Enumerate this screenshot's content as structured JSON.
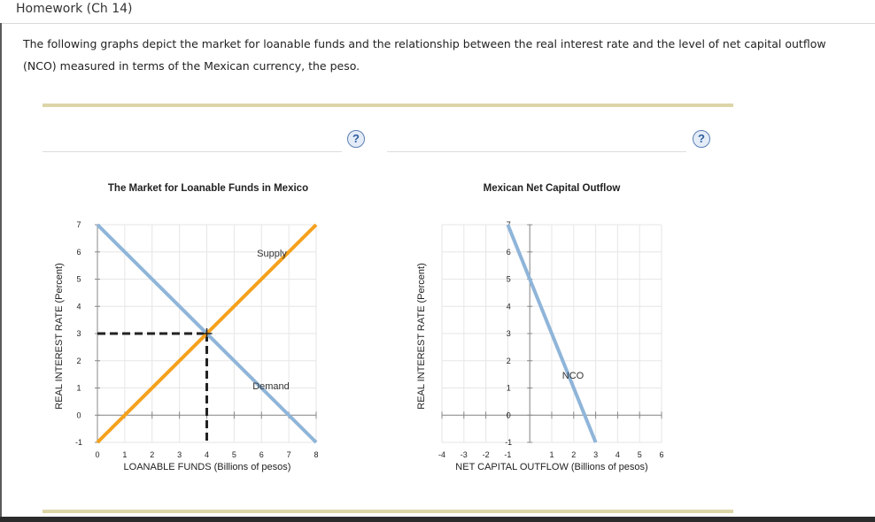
{
  "header": {
    "title": "Homework (Ch 14)"
  },
  "intro": {
    "text": "The following graphs depict the market for loanable funds and the relationship between the real interest rate and the level of net capital outflow (NCO) measured in terms of the Mexican currency, the peso."
  },
  "help": {
    "symbol": "?"
  },
  "colors": {
    "supply": "#f5a11d",
    "demand": "#8fb5d9",
    "nco": "#8fb5d9",
    "dashed": "#222222",
    "grid": "#e6e6e6"
  },
  "chart_data": [
    {
      "type": "line",
      "title": "The Market for Loanable Funds in Mexico",
      "xlabel": "LOANABLE FUNDS (Billions of pesos)",
      "ylabel": "REAL INTEREST RATE (Percent)",
      "xlim": [
        0,
        8
      ],
      "ylim": [
        -1,
        7
      ],
      "xticks": [
        0,
        1,
        2,
        3,
        4,
        5,
        6,
        7,
        8
      ],
      "yticks": [
        -1,
        0,
        1,
        2,
        3,
        4,
        5,
        6,
        7
      ],
      "grid": true,
      "series": [
        {
          "name": "Supply",
          "x": [
            0,
            8
          ],
          "y": [
            -1,
            7
          ]
        },
        {
          "name": "Demand",
          "x": [
            0,
            8
          ],
          "y": [
            7,
            -1
          ]
        }
      ],
      "equilibrium": {
        "x": 4,
        "y": 3
      }
    },
    {
      "type": "line",
      "title": "Mexican Net Capital Outflow",
      "xlabel": "NET CAPITAL OUTFLOW (Billions of pesos)",
      "ylabel": "REAL INTEREST RATE (Percent)",
      "xlim": [
        -4,
        6
      ],
      "ylim": [
        -1,
        7
      ],
      "xticks": [
        -4,
        -3,
        -2,
        -1,
        1,
        2,
        3,
        4,
        5,
        6
      ],
      "yticks": [
        -1,
        0,
        1,
        2,
        3,
        4,
        5,
        6,
        7
      ],
      "grid": true,
      "series": [
        {
          "name": "NCO",
          "x": [
            -1,
            3
          ],
          "y": [
            7,
            -1
          ]
        }
      ]
    }
  ]
}
